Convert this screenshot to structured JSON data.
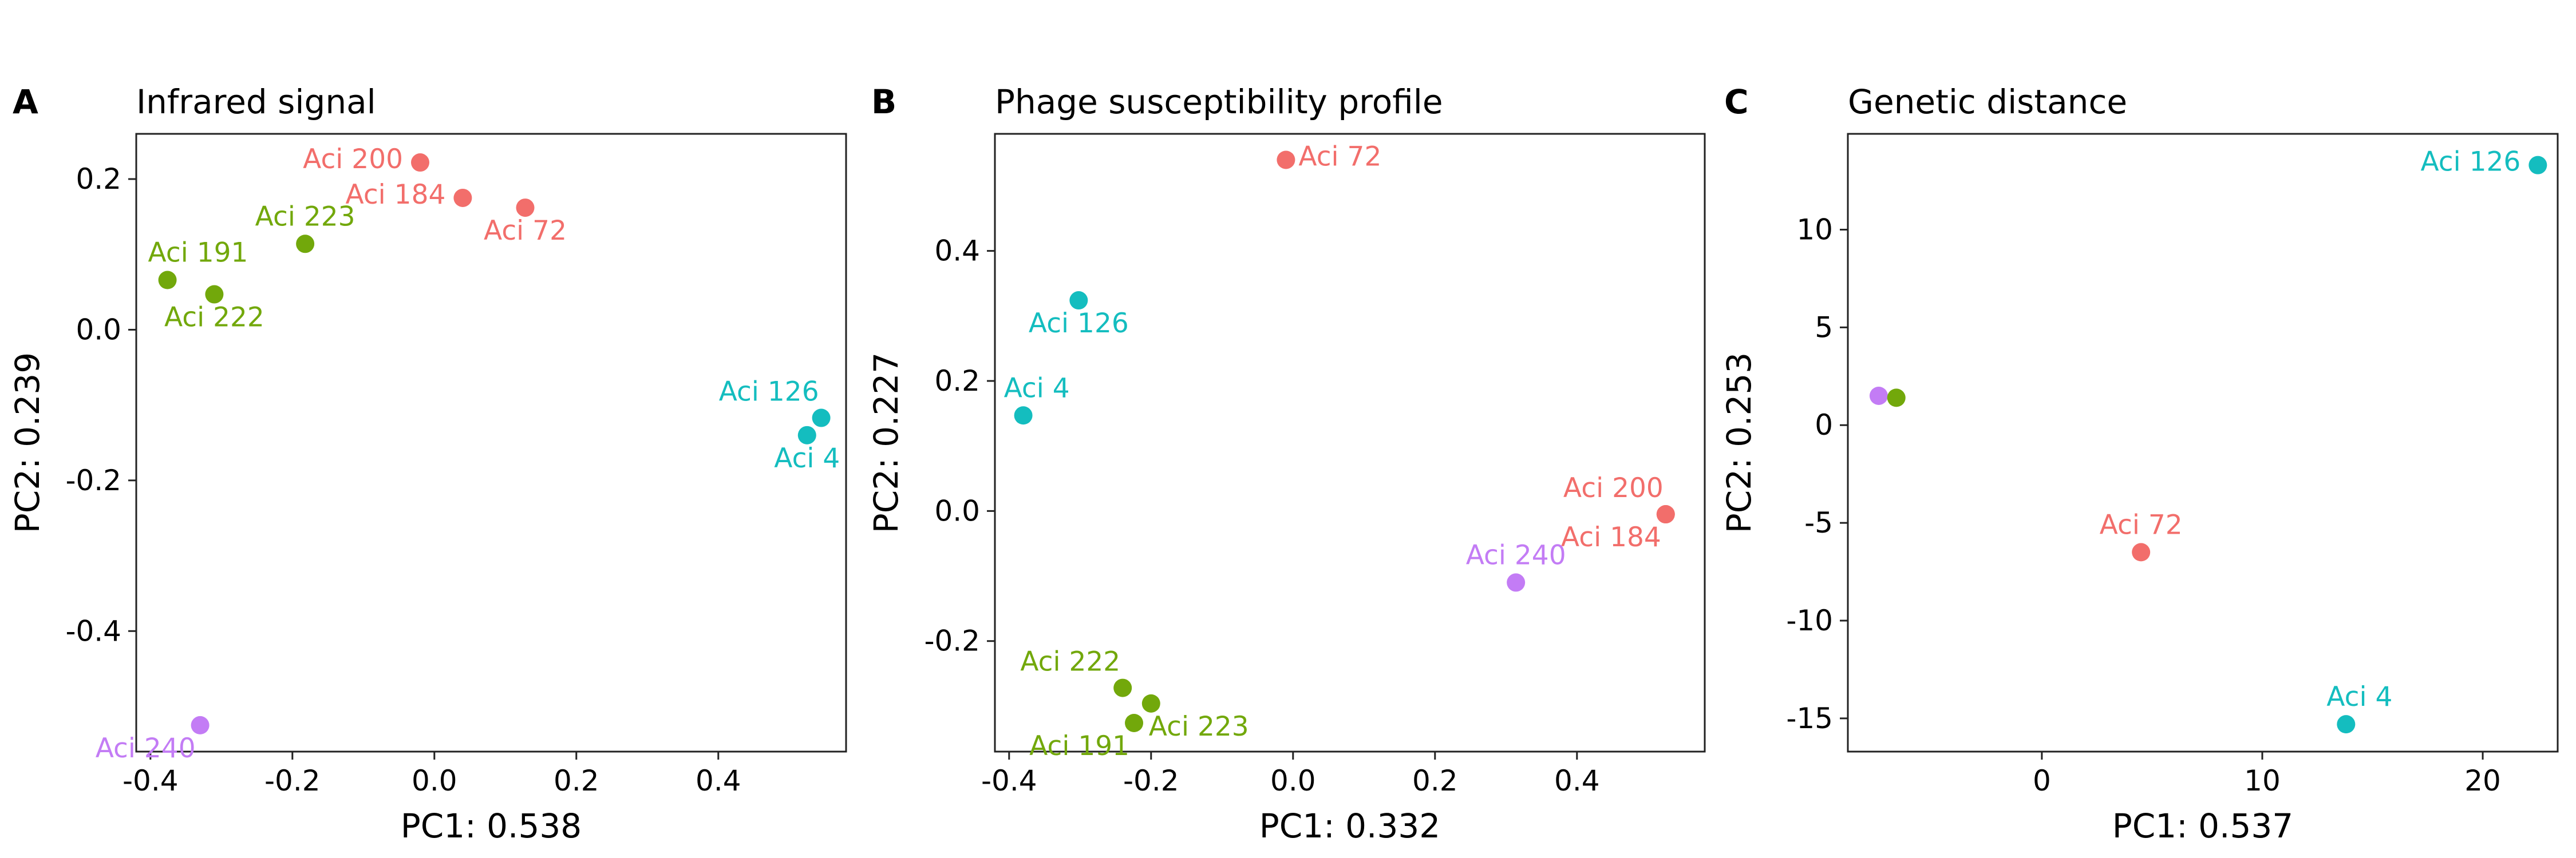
{
  "colors": {
    "red": "#f26e6b",
    "green": "#72a80b",
    "teal": "#14bdbf",
    "purple": "#c37cf5"
  },
  "chart_data": [
    {
      "type": "scatter",
      "panel": "A",
      "title": "Infrared signal",
      "xlabel": "PC1: 0.538",
      "ylabel": "PC2: 0.239",
      "xlim": [
        -0.42,
        0.58
      ],
      "ylim": [
        -0.56,
        0.26
      ],
      "xticks": [
        -0.4,
        -0.2,
        0.0,
        0.2,
        0.4
      ],
      "xtick_labels": [
        "-0.4",
        "-0.2",
        "0.0",
        "0.2",
        "0.4"
      ],
      "yticks": [
        0.2,
        0.0,
        -0.2,
        -0.4
      ],
      "ytick_labels": [
        "0.2",
        "0.0",
        "-0.2",
        "-0.4"
      ],
      "points": [
        {
          "label": "Aci 200",
          "x": -0.02,
          "y": 0.222,
          "color": "red",
          "pos": "left"
        },
        {
          "label": "Aci 184",
          "x": 0.04,
          "y": 0.175,
          "color": "red",
          "pos": "left"
        },
        {
          "label": "Aci 72",
          "x": 0.128,
          "y": 0.162,
          "color": "red",
          "pos": "below"
        },
        {
          "label": "Aci 223",
          "x": -0.182,
          "y": 0.114,
          "color": "green",
          "pos": "above"
        },
        {
          "label": "Aci 191",
          "x": -0.376,
          "y": 0.066,
          "color": "green",
          "pos": "above-right"
        },
        {
          "label": "Aci 222",
          "x": -0.31,
          "y": 0.047,
          "color": "green",
          "pos": "below"
        },
        {
          "label": "Aci 126",
          "x": 0.545,
          "y": -0.117,
          "color": "teal",
          "pos": "above-left"
        },
        {
          "label": "Aci 4",
          "x": 0.525,
          "y": -0.14,
          "color": "teal",
          "pos": "below"
        },
        {
          "label": "Aci 240",
          "x": -0.33,
          "y": -0.525,
          "color": "purple",
          "pos": "below-left"
        }
      ]
    },
    {
      "type": "scatter",
      "panel": "B",
      "title": "Phage susceptibility profile",
      "xlabel": "PC1: 0.332",
      "ylabel": "PC2: 0.227",
      "xlim": [
        -0.42,
        0.58
      ],
      "ylim": [
        -0.37,
        0.58
      ],
      "xticks": [
        -0.4,
        -0.2,
        0.0,
        0.2,
        0.4
      ],
      "xtick_labels": [
        "-0.4",
        "-0.2",
        "0.0",
        "0.2",
        "0.4"
      ],
      "yticks": [
        0.4,
        0.2,
        0.0,
        -0.2
      ],
      "ytick_labels": [
        "0.4",
        "0.2",
        "0.0",
        "-0.2"
      ],
      "points": [
        {
          "label": "Aci 72",
          "x": -0.01,
          "y": 0.54,
          "color": "red",
          "pos": "right"
        },
        {
          "label": "Aci 126",
          "x": -0.302,
          "y": 0.324,
          "color": "teal",
          "pos": "below"
        },
        {
          "label": "Aci 4",
          "x": -0.38,
          "y": 0.147,
          "color": "teal",
          "pos": "above-right"
        },
        {
          "label": "Aci 200",
          "x": 0.525,
          "y": -0.005,
          "color": "red",
          "pos": "above-left"
        },
        {
          "label": "Aci 184",
          "x": 0.525,
          "y": -0.005,
          "color": "red",
          "pos": "below-left"
        },
        {
          "label": "Aci 240",
          "x": 0.314,
          "y": -0.11,
          "color": "purple",
          "pos": "above"
        },
        {
          "label": "Aci 222",
          "x": -0.24,
          "y": -0.272,
          "color": "green",
          "pos": "above-left"
        },
        {
          "label": "Aci 223",
          "x": -0.2,
          "y": -0.296,
          "color": "green",
          "pos": "below-right"
        },
        {
          "label": "Aci 191",
          "x": -0.224,
          "y": -0.326,
          "color": "green",
          "pos": "below-left"
        }
      ]
    },
    {
      "type": "scatter",
      "panel": "C",
      "title": "Genetic distance",
      "xlabel": "PC1: 0.537",
      "ylabel": "PC2: 0.253",
      "xlim": [
        -8.8,
        23.4
      ],
      "ylim": [
        -16.7,
        14.9
      ],
      "xticks": [
        0,
        10,
        20
      ],
      "xtick_labels": [
        "0",
        "10",
        "20"
      ],
      "yticks": [
        10,
        5,
        0,
        -5,
        -10,
        -15
      ],
      "ytick_labels": [
        "10",
        "5",
        "0",
        "-5",
        "-10",
        "-15"
      ],
      "points": [
        {
          "label": "Aci 126",
          "x": 22.5,
          "y": 13.3,
          "color": "teal",
          "pos": "left"
        },
        {
          "label": "",
          "x": -7.4,
          "y": 1.5,
          "color": "purple",
          "pos": "none"
        },
        {
          "label": "",
          "x": -6.6,
          "y": 1.4,
          "color": "green",
          "pos": "none"
        },
        {
          "label": "Aci 72",
          "x": 4.5,
          "y": -6.5,
          "color": "red",
          "pos": "above"
        },
        {
          "label": "Aci 4",
          "x": 13.8,
          "y": -15.3,
          "color": "teal",
          "pos": "above-right"
        }
      ]
    }
  ]
}
